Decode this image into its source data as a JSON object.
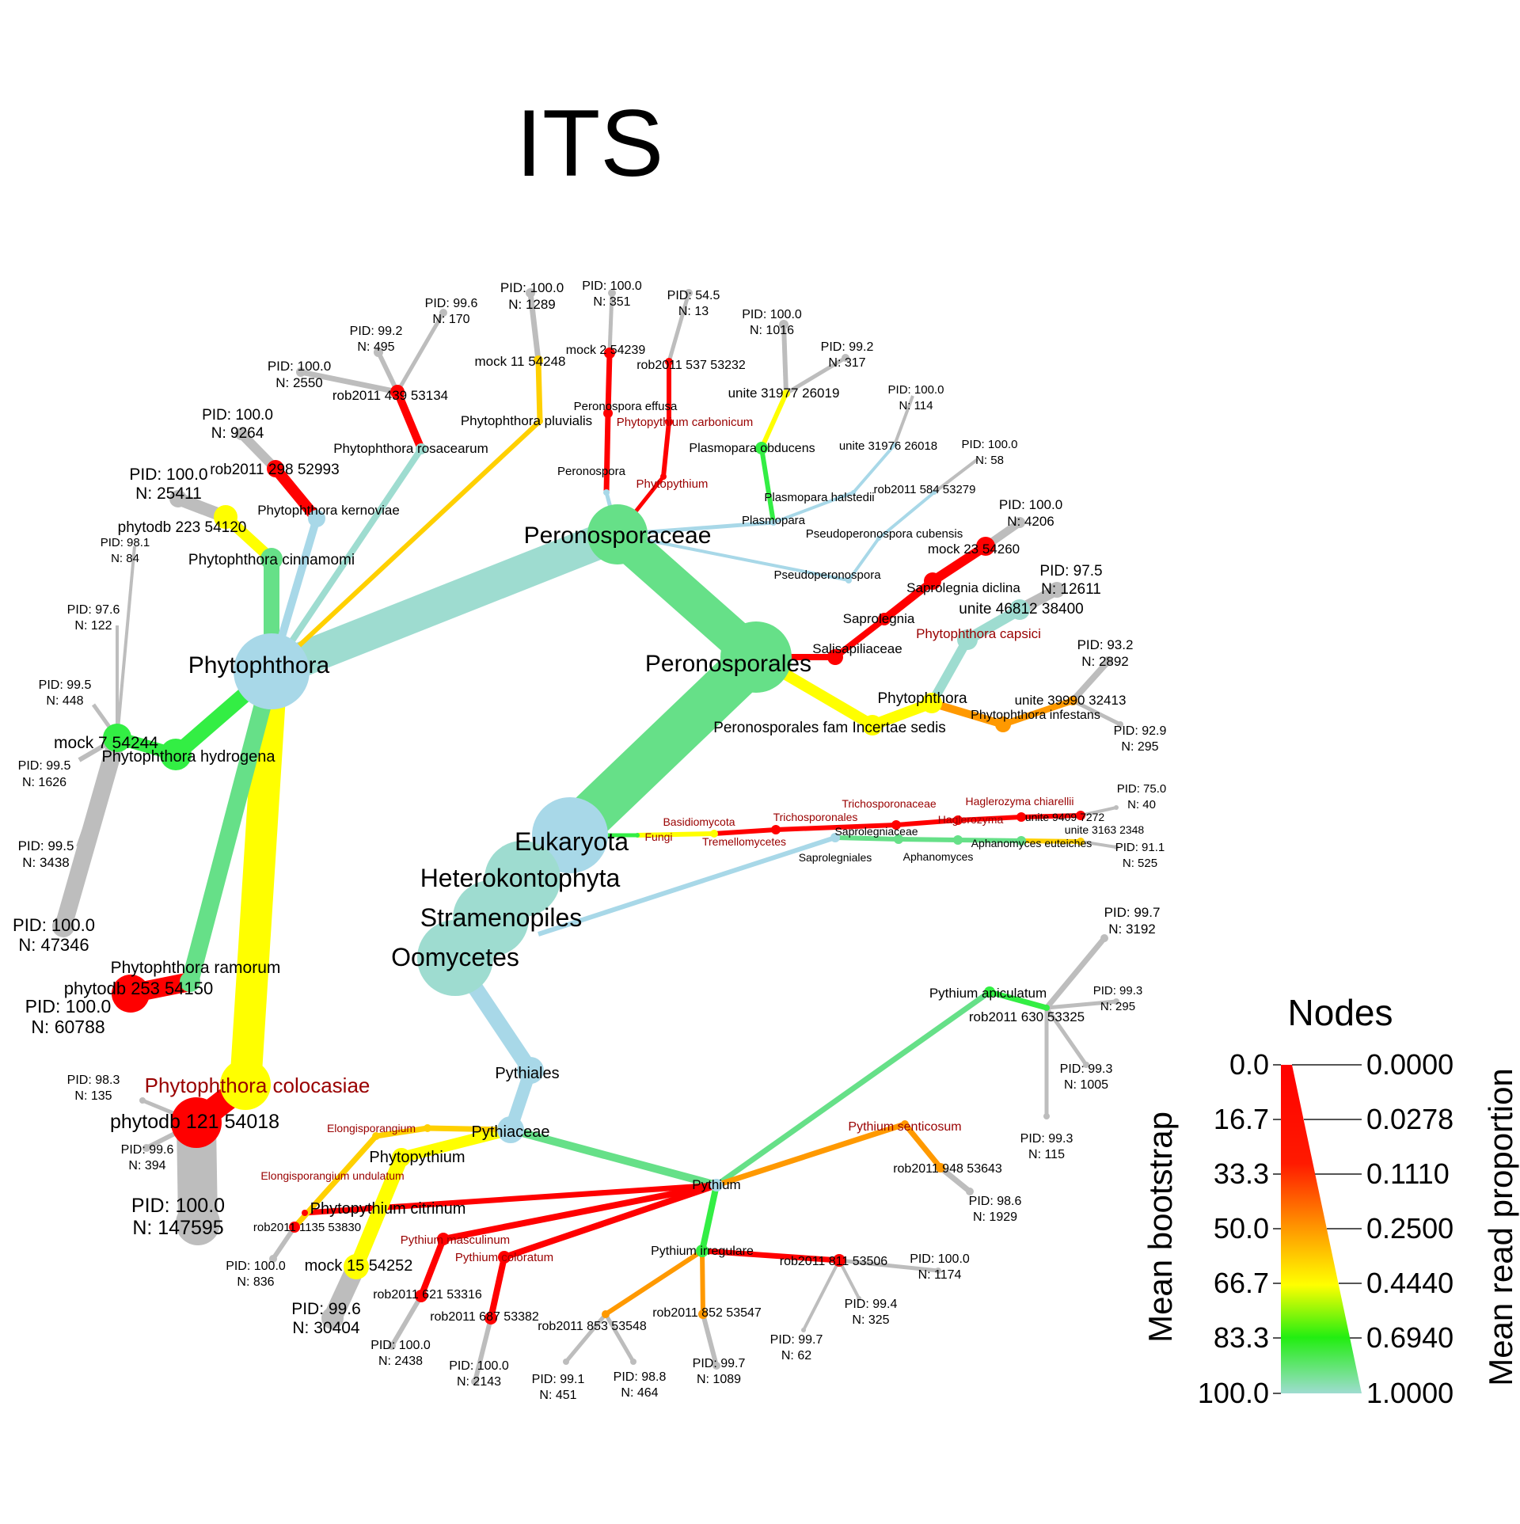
{
  "title": "ITS",
  "colors": {
    "red": "#ff0000",
    "orange": "#ff9900",
    "yellow": "#ffff00",
    "gold": "#ffd000",
    "green": "#33ee44",
    "mint": "#66e088",
    "teal": "#9edcd0",
    "lightblue": "#a8d8e8",
    "grey": "#bdbdbd",
    "darkred": "#990000",
    "black": "#000000"
  },
  "legend": {
    "title": "Nodes",
    "left_axis_label": "Mean bootstrap",
    "right_axis_label": "Mean read proportion",
    "bootstrap_ticks": [
      "0.0",
      "16.7",
      "33.3",
      "50.0",
      "66.7",
      "83.3",
      "100.0"
    ],
    "proportion_ticks": [
      "0.0000",
      "0.0278",
      "0.1110",
      "0.2500",
      "0.4440",
      "0.6940",
      "1.0000"
    ]
  },
  "labels": {
    "l_eukaryota": "Eukaryota",
    "l_hetero": "Heterokontophyta",
    "l_strameno": "Stramenopiles",
    "l_oomycetes": "Oomycetes",
    "l_peronosporaceae": "Peronosporaceae",
    "l_peronosporales": "Peronosporales",
    "l_phytophthora": "Phytophthora",
    "l_pythiales": "Pythiales",
    "l_pythiaceae": "Pythiaceae",
    "l_pythium": "Pythium",
    "l_phytopythium": "Phytopythium",
    "l_ph_cinnamomi": "Phytophthora cinnamomi",
    "l_ph_kernoviae": "Phytophthora kernoviae",
    "l_ph_rosacearum": "Phytophthora rosacearum",
    "l_ph_pluvialis": "Phytophthora pluvialis",
    "l_ph_hydrogena": "Phytophthora hydrogena",
    "l_ph_ramorum": "Phytophthora ramorum",
    "l_ph_colocasiae": "Phytophthora colocasiae",
    "l_mock7": "mock 7 54244",
    "l_phytodb223": "phytodb 223 54120",
    "l_rob298": "rob2011 298 52993",
    "l_rob439": "rob2011 439 53134",
    "l_mock11": "mock 11 54248",
    "l_mock2": "mock 2 54239",
    "l_rob537": "rob2011 537 53232",
    "l_phytodb253": "phytodb 253 54150",
    "l_phytodb121": "phytodb 121 54018",
    "l_peronospora": "Peronospora",
    "l_peronospora_effusa": "Peronospora effusa",
    "l_phytopythium_r": "Phytopythium",
    "l_phytopythium_carb": "Phytopythium carbonicum",
    "l_unite31977": "unite 31977 26019",
    "l_plasmopara_obd": "Plasmopara obducens",
    "l_unite31976": "unite 31976 26018",
    "l_plasmopara_hal": "Plasmopara halstedii",
    "l_plasmopara": "Plasmopara",
    "l_rob584": "rob2011 584 53279",
    "l_pseudoper_cub": "Pseudoperonospora cubensis",
    "l_pseudoper": "Pseudoperonospora",
    "l_mock23": "mock 23 54260",
    "l_sap_diclina": "Saprolegnia diclina",
    "l_saprolegnia": "Saprolegnia",
    "l_salisapili": "Salisapiliaceae",
    "l_unite46812": "unite 46812 38400",
    "l_ph_capsici": "Phytophthora capsici",
    "l_phytophthora2": "Phytophthora",
    "l_unite39990": "unite 39990 32413",
    "l_ph_infestans": "Phytophthora infestans",
    "l_perono_fam": "Peronosporales fam Incertae sedis",
    "l_basidio": "Basidiomycota",
    "l_fungi": "Fungi",
    "l_tricho": "Trichosporonales",
    "l_tremello": "Tremellomycetes",
    "l_trichoceae": "Trichosporonaceae",
    "l_hagle_ch": "Haglerozyma chiarellii",
    "l_hagle": "Haglerozyma",
    "l_unite9409": "unite 9409 7272",
    "l_saproleg_ceae": "Saprolegniaceae",
    "l_aphano_eut": "Aphanomyces euteiches",
    "l_unite3163": "unite 3163 2348",
    "l_saproleg_ales": "Saprolegniales",
    "l_aphanomyces": "Aphanomyces",
    "l_py_apic": "Pythium apiculatum",
    "l_rob630": "rob2011 630 53325",
    "l_py_sent": "Pythium senticosum",
    "l_rob948": "rob2011 948 53643",
    "l_py_irreg": "Pythium irregulare",
    "l_rob811": "rob2011 811 53506",
    "l_rob852": "rob2011 852 53547",
    "l_rob853": "rob2011 853 53548",
    "l_py_masc": "Pythium masculinum",
    "l_py_color": "Pythium coloratum",
    "l_rob621": "rob2011 621 53316",
    "l_rob687": "rob2011 687 53382",
    "l_elongi": "Elongisporangium",
    "l_elongi_und": "Elongisporangium undulatum",
    "l_pp_citrinum": "Phytopythium citrinum",
    "l_rob1135": "rob2011 1135 53830",
    "l_mock15": "mock 15 54252"
  },
  "leaves": {
    "f_100_2550": {
      "pid": "PID: 100.0",
      "n": "N: 2550"
    },
    "f_992_495": {
      "pid": "PID: 99.2",
      "n": "N: 495"
    },
    "f_996_170": {
      "pid": "PID: 99.6",
      "n": "N: 170"
    },
    "f_100_1289": {
      "pid": "PID: 100.0",
      "n": "N: 1289"
    },
    "f_100_351": {
      "pid": "PID: 100.0",
      "n": "N: 351"
    },
    "f_545_13": {
      "pid": "PID: 54.5",
      "n": "N: 13"
    },
    "f_100_1016": {
      "pid": "PID: 100.0",
      "n": "N: 1016"
    },
    "f_992_317": {
      "pid": "PID: 99.2",
      "n": "N: 317"
    },
    "f_100_114": {
      "pid": "PID: 100.0",
      "n": "N: 114"
    },
    "f_100_58": {
      "pid": "PID: 100.0",
      "n": "N: 58"
    },
    "f_100_4206": {
      "pid": "PID: 100.0",
      "n": "N: 4206"
    },
    "f_975_12611": {
      "pid": "PID: 97.5",
      "n": "N: 12611"
    },
    "f_932_2892": {
      "pid": "PID: 93.2",
      "n": "N: 2892"
    },
    "f_929_295": {
      "pid": "PID: 92.9",
      "n": "N: 295"
    },
    "f_75_40": {
      "pid": "PID: 75.0",
      "n": "N: 40"
    },
    "f_911_525": {
      "pid": "PID: 91.1",
      "n": "N: 525"
    },
    "f_100_9264": {
      "pid": "PID: 100.0",
      "n": "N: 9264"
    },
    "f_100_25411": {
      "pid": "PID: 100.0",
      "n": "N: 25411"
    },
    "f_981_84": {
      "pid": "PID: 98.1",
      "n": "N: 84"
    },
    "f_976_122": {
      "pid": "PID: 97.6",
      "n": "N: 122"
    },
    "f_995_448": {
      "pid": "PID: 99.5",
      "n": "N: 448"
    },
    "f_995_1626": {
      "pid": "PID: 99.5",
      "n": "N: 1626"
    },
    "f_995_3438": {
      "pid": "PID: 99.5",
      "n": "N: 3438"
    },
    "f_100_47346": {
      "pid": "PID: 100.0",
      "n": "N: 47346"
    },
    "f_100_60788": {
      "pid": "PID: 100.0",
      "n": "N: 60788"
    },
    "f_983_135": {
      "pid": "PID: 98.3",
      "n": "N: 135"
    },
    "f_996_394": {
      "pid": "PID: 99.6",
      "n": "N: 394"
    },
    "f_100_147595": {
      "pid": "PID: 100.0",
      "n": "N: 147595"
    },
    "f_997_3192": {
      "pid": "PID: 99.7",
      "n": "N: 3192"
    },
    "f_993_295": {
      "pid": "PID: 99.3",
      "n": "N: 295"
    },
    "f_993_1005": {
      "pid": "PID: 99.3",
      "n": "N: 1005"
    },
    "f_993_115": {
      "pid": "PID: 99.3",
      "n": "N: 115"
    },
    "f_986_1929": {
      "pid": "PID: 98.6",
      "n": "N: 1929"
    },
    "f_100_1174": {
      "pid": "PID: 100.0",
      "n": "N: 1174"
    },
    "f_994_325": {
      "pid": "PID: 99.4",
      "n": "N: 325"
    },
    "f_997_62": {
      "pid": "PID: 99.7",
      "n": "N: 62"
    },
    "f_997_1089": {
      "pid": "PID: 99.7",
      "n": "N: 1089"
    },
    "f_988_464": {
      "pid": "PID: 98.8",
      "n": "N: 464"
    },
    "f_991_451": {
      "pid": "PID: 99.1",
      "n": "N: 451"
    },
    "f_100_2143": {
      "pid": "PID: 100.0",
      "n": "N: 2143"
    },
    "f_100_2438": {
      "pid": "PID: 100.0",
      "n": "N: 2438"
    },
    "f_100_836": {
      "pid": "PID: 100.0",
      "n": "N: 836"
    },
    "f_996_30404": {
      "pid": "PID: 99.6",
      "n": "N: 30404"
    }
  }
}
